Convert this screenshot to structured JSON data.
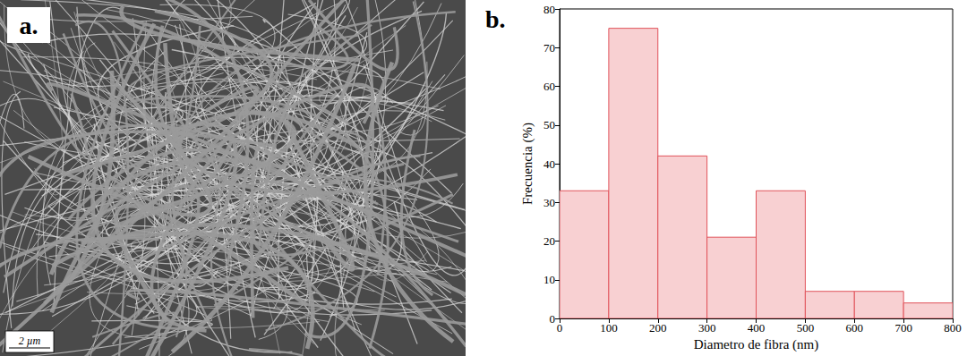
{
  "chart_data": {
    "type": "histogram",
    "panel_label": "b.",
    "x_label": "Diametro de fibra (nm)",
    "y_label": "Frecuencia (%)",
    "bins": [
      0,
      100,
      200,
      300,
      400,
      500,
      600,
      700,
      800
    ],
    "values": [
      33,
      75,
      42,
      21,
      33,
      7,
      7,
      4
    ],
    "color": "#f8d0d2",
    "xlim": [
      0,
      800
    ],
    "xticks": [
      0,
      100,
      200,
      300,
      400,
      500,
      600,
      700,
      800
    ],
    "ylim": [
      0,
      80
    ],
    "yticks": [
      0,
      10,
      20,
      30,
      40,
      50,
      60,
      70,
      80
    ],
    "grid": false
  },
  "image_panel": {
    "panel_label": "a.",
    "scale_bar": "2 µm"
  }
}
